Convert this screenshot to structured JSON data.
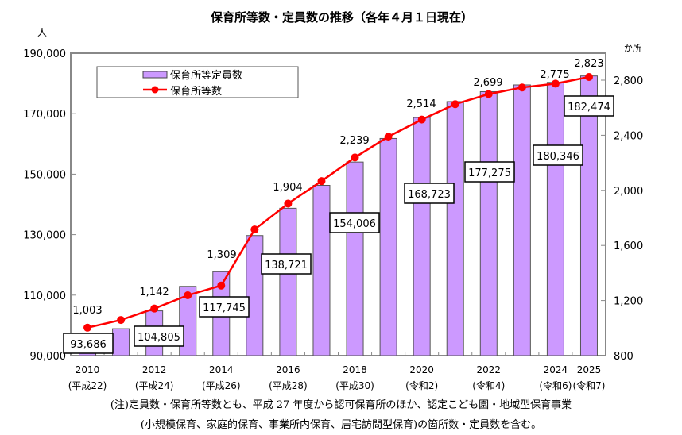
{
  "chart_data": {
    "type": "bar+line",
    "title": "保育所等数・定員数の推移（各年４月１日現在）",
    "left_unit": "人",
    "right_unit": "か所",
    "categories": [
      "2010",
      "2011",
      "2012",
      "2013",
      "2014",
      "2015",
      "2016",
      "2017",
      "2018",
      "2019",
      "2020",
      "2021",
      "2022",
      "2023",
      "2024",
      "2025"
    ],
    "x_tick_labels": [
      {
        "year": "2010",
        "era": "(平成22)"
      },
      {
        "year": "2012",
        "era": "(平成24)"
      },
      {
        "year": "2014",
        "era": "(平成26)"
      },
      {
        "year": "2016",
        "era": "(平成28)"
      },
      {
        "year": "2018",
        "era": "(平成30)"
      },
      {
        "year": "2020",
        "era": "(令和2)"
      },
      {
        "year": "2022",
        "era": "(令和4)"
      },
      {
        "year": "2024",
        "era": "(令和6)"
      },
      {
        "year": "2025",
        "era": "(令和7)"
      }
    ],
    "series": [
      {
        "name": "保育所等定員数",
        "type": "bar",
        "axis": "left",
        "color": "#cc99ff",
        "values": [
          93686,
          98900,
          104805,
          112900,
          117745,
          129700,
          138721,
          146300,
          154006,
          161800,
          168723,
          174000,
          177275,
          179500,
          180346,
          182474
        ],
        "labels": [
          "93,686",
          "",
          "104,805",
          "",
          "117,745",
          "",
          "138,721",
          "",
          "154,006",
          "",
          "168,723",
          "",
          "177,275",
          "",
          "180,346",
          "182,474"
        ]
      },
      {
        "name": "保育所等数",
        "type": "line",
        "axis": "right",
        "color": "#ff0000",
        "values": [
          1003,
          1059,
          1142,
          1238,
          1309,
          1716,
          1904,
          2067,
          2239,
          2390,
          2514,
          2626,
          2699,
          2747,
          2775,
          2823
        ],
        "labels": [
          "1,003",
          "",
          "1,142",
          "",
          "1,309",
          "",
          "1,904",
          "",
          "2,239",
          "",
          "2,514",
          "",
          "2,699",
          "",
          "2,775",
          "2,823"
        ]
      }
    ],
    "y_left": {
      "lim": [
        90000,
        190000
      ],
      "ticks": [
        "90,000",
        "110,000",
        "130,000",
        "150,000",
        "170,000",
        "190,000"
      ]
    },
    "y_right": {
      "lim": [
        800,
        2900
      ],
      "ticks": [
        "800",
        "1,200",
        "1,600",
        "2,000",
        "2,400",
        "2,800"
      ]
    },
    "legend": "top-left",
    "grid": false
  },
  "notes": [
    "(注)定員数・保育所等数とも、平成 27 年度から認可保育所のほか、認定こども園・地域型保育事業",
    "(小規模保育、家庭的保育、事業所内保育、居宅訪問型保育)の箇所数・定員数を含む。"
  ]
}
